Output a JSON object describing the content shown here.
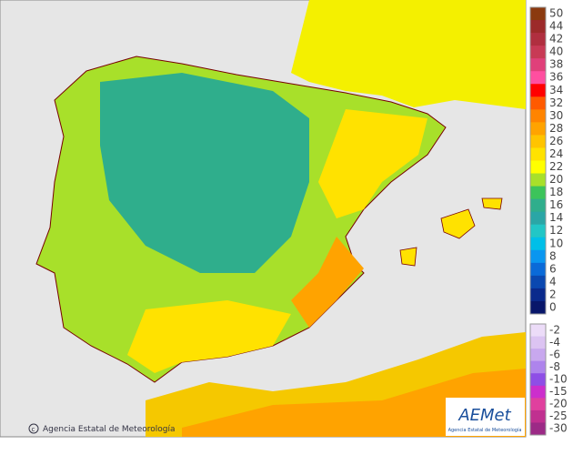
{
  "map": {
    "credit": "Agencia Estatal de Meteorología",
    "logo": {
      "name": "AEMet",
      "subtitle": "Agencia Estatal de Meteorología"
    }
  },
  "legend": {
    "positive": [
      {
        "label": "50",
        "color": "#8b3a0f"
      },
      {
        "label": "44",
        "color": "#9c2a2a"
      },
      {
        "label": "42",
        "color": "#b02f3f"
      },
      {
        "label": "40",
        "color": "#c83a55"
      },
      {
        "label": "38",
        "color": "#e0407a"
      },
      {
        "label": "36",
        "color": "#ff4fa0"
      },
      {
        "label": "34",
        "color": "#ff0000"
      },
      {
        "label": "32",
        "color": "#ff5a00"
      },
      {
        "label": "30",
        "color": "#ff8400"
      },
      {
        "label": "28",
        "color": "#ffa300"
      },
      {
        "label": "26",
        "color": "#ffc400"
      },
      {
        "label": "24",
        "color": "#ffe200"
      },
      {
        "label": "22",
        "color": "#ffff00"
      },
      {
        "label": "20",
        "color": "#a8e02a"
      },
      {
        "label": "18",
        "color": "#3cc45a"
      },
      {
        "label": "16",
        "color": "#2fae8c"
      },
      {
        "label": "14",
        "color": "#2aa6a6"
      },
      {
        "label": "12",
        "color": "#22c6c6"
      },
      {
        "label": "10",
        "color": "#00bfe8"
      },
      {
        "label": "8",
        "color": "#0a96f0"
      },
      {
        "label": "6",
        "color": "#0a6ad8"
      },
      {
        "label": "4",
        "color": "#0a48b0"
      },
      {
        "label": "2",
        "color": "#0a2a8c"
      },
      {
        "label": "0",
        "color": "#08166a"
      }
    ],
    "negative": [
      {
        "label": "-2",
        "color": "#ecdcf8"
      },
      {
        "label": "-4",
        "color": "#dcc4f2"
      },
      {
        "label": "-6",
        "color": "#c8a8ee"
      },
      {
        "label": "-8",
        "color": "#ae84ec"
      },
      {
        "label": "-10",
        "color": "#8e4ee6"
      },
      {
        "label": "-15",
        "color": "#cc2ecc"
      },
      {
        "label": "-20",
        "color": "#e0409e"
      },
      {
        "label": "-25",
        "color": "#c03090"
      },
      {
        "label": "-30",
        "color": "#9c2a86"
      }
    ]
  }
}
